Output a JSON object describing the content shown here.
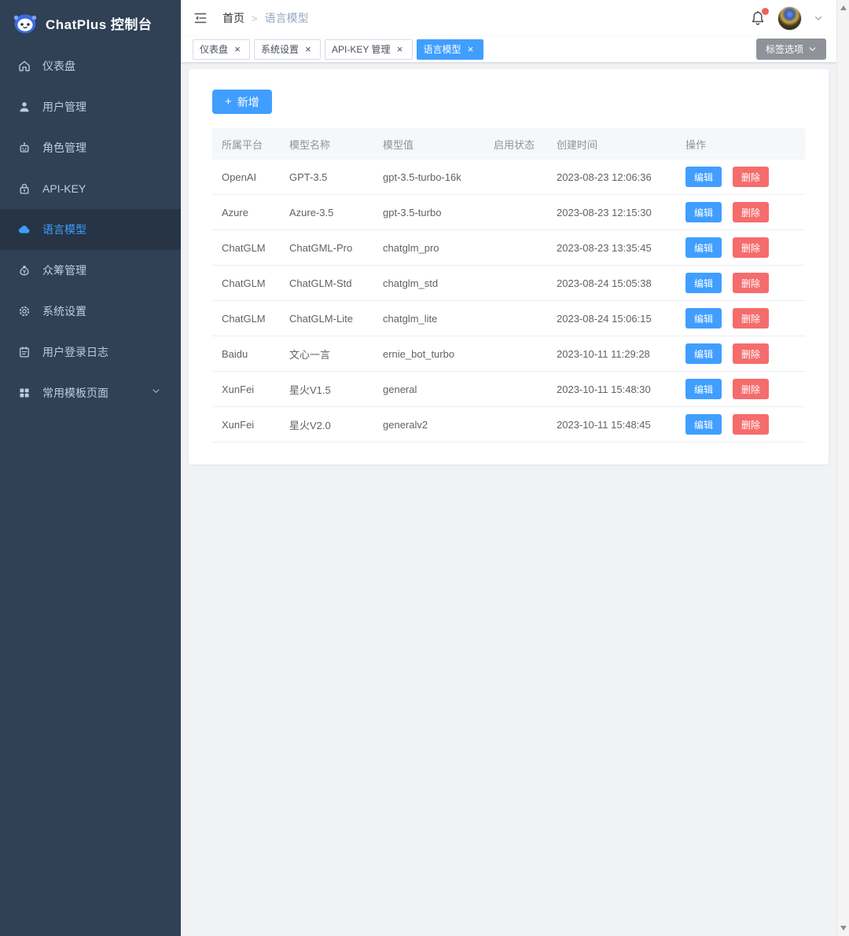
{
  "app": {
    "title": "ChatPlus 控制台"
  },
  "sidebar": {
    "items": [
      {
        "id": "dashboard",
        "label": "仪表盘",
        "icon": "dashboard-icon",
        "active": false,
        "has_arrow": false
      },
      {
        "id": "user-management",
        "label": "用户管理",
        "icon": "user-icon",
        "active": false,
        "has_arrow": false
      },
      {
        "id": "role-management",
        "label": "角色管理",
        "icon": "role-robot-icon",
        "active": false,
        "has_arrow": false
      },
      {
        "id": "api-key",
        "label": "API-KEY",
        "icon": "lock-icon",
        "active": false,
        "has_arrow": false
      },
      {
        "id": "language-model",
        "label": "语言模型",
        "icon": "language-model-icon",
        "active": true,
        "has_arrow": false
      },
      {
        "id": "crowdfunding",
        "label": "众筹管理",
        "icon": "money-bag-icon",
        "active": false,
        "has_arrow": false
      },
      {
        "id": "system-settings",
        "label": "系统设置",
        "icon": "gear-icon",
        "active": false,
        "has_arrow": false
      },
      {
        "id": "login-log",
        "label": "用户登录日志",
        "icon": "log-book-icon",
        "active": false,
        "has_arrow": false
      },
      {
        "id": "template-pages",
        "label": "常用模板页面",
        "icon": "grid-icon",
        "active": false,
        "has_arrow": true
      }
    ]
  },
  "header": {
    "breadcrumb": {
      "home": "首页",
      "separator": ">",
      "current": "语言模型"
    }
  },
  "tabs": {
    "items": [
      {
        "id": "dashboard",
        "label": "仪表盘",
        "active": false
      },
      {
        "id": "system-settings",
        "label": "系统设置",
        "active": false
      },
      {
        "id": "api-key-manage",
        "label": "API-KEY 管理",
        "active": false
      },
      {
        "id": "language-model",
        "label": "语言模型",
        "active": true
      }
    ],
    "options_button": "标签选项"
  },
  "toolbar": {
    "add_label": "新增"
  },
  "table": {
    "columns": [
      "所属平台",
      "模型名称",
      "模型值",
      "启用状态",
      "创建时间",
      "操作"
    ],
    "edit_label": "编辑",
    "delete_label": "删除",
    "rows": [
      {
        "platform": "OpenAI",
        "name": "GPT-3.5",
        "value": "gpt-3.5-turbo-16k",
        "enabled": true,
        "created": "2023-08-23 12:06:36"
      },
      {
        "platform": "Azure",
        "name": "Azure-3.5",
        "value": "gpt-3.5-turbo",
        "enabled": true,
        "created": "2023-08-23 12:15:30"
      },
      {
        "platform": "ChatGLM",
        "name": "ChatGML-Pro",
        "value": "chatglm_pro",
        "enabled": true,
        "created": "2023-08-23 13:35:45"
      },
      {
        "platform": "ChatGLM",
        "name": "ChatGLM-Std",
        "value": "chatglm_std",
        "enabled": true,
        "created": "2023-08-24 15:05:38"
      },
      {
        "platform": "ChatGLM",
        "name": "ChatGLM-Lite",
        "value": "chatglm_lite",
        "enabled": true,
        "created": "2023-08-24 15:06:15"
      },
      {
        "platform": "Baidu",
        "name": "文心一言",
        "value": "ernie_bot_turbo",
        "enabled": true,
        "created": "2023-10-11 11:29:28"
      },
      {
        "platform": "XunFei",
        "name": "星火V1.5",
        "value": "general",
        "enabled": true,
        "created": "2023-10-11 15:48:30"
      },
      {
        "platform": "XunFei",
        "name": "星火V2.0",
        "value": "generalv2",
        "enabled": true,
        "created": "2023-10-11 15:48:45"
      }
    ]
  },
  "colors": {
    "primary": "#409eff",
    "danger": "#f56c6c",
    "sidebar_bg": "#304156",
    "sidebar_active_bg": "#263445",
    "tab_active_bg": "#409eff",
    "info_button_bg": "#8f9399"
  }
}
